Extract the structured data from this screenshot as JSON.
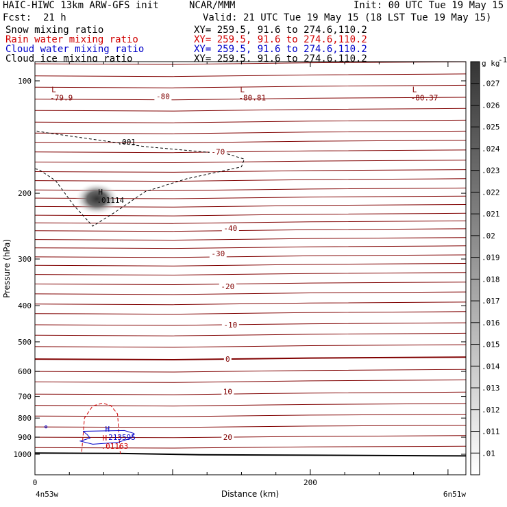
{
  "header": {
    "model": "HAIC-HIWC 13km ARW-GFS init",
    "org": "NCAR/MMM",
    "init": "Init: 00 UTC Tue 19 May 15",
    "fcst_label": "Fcst:",
    "fcst_value": "21 h",
    "valid": "Valid: 21 UTC Tue 19 May 15 (18 LST Tue 19 May 15)"
  },
  "fields": [
    {
      "name": "Snow mixing ratio",
      "xy": "XY= 259.5, 91.6 to 274.6,110.2",
      "color": "#000000"
    },
    {
      "name": "Rain water mixing ratio",
      "xy": "XY= 259.5, 91.6 to 274.6,110.2",
      "color": "#d00000"
    },
    {
      "name": "Cloud water mixing ratio",
      "xy": "XY= 259.5, 91.6 to 274.6,110.2",
      "color": "#0000c8"
    },
    {
      "name": "Cloud ice mixing ratio",
      "xy": "XY= 259.5, 91.6 to 274.6,110.2",
      "color": "#000000"
    }
  ],
  "chart_data": {
    "type": "cross-section",
    "xlabel": "Distance (km)",
    "ylabel": "Pressure (hPa)",
    "x_ticks": [
      0,
      200
    ],
    "x_end_labels": [
      "4n53w",
      "6n51w"
    ],
    "y_ticks": [
      100,
      200,
      300,
      400,
      500,
      600,
      700,
      800,
      900,
      1000
    ],
    "y_scale": "log",
    "xlim": [
      0,
      313
    ],
    "ylim": [
      1050,
      70
    ],
    "isotherm_labels": [
      {
        "label": "-80",
        "x": 93,
        "p": 110
      },
      {
        "label": "-70",
        "x": 133,
        "p": 155
      },
      {
        "label": "-40",
        "x": 142,
        "p": 248
      },
      {
        "label": "-30",
        "x": 133,
        "p": 290
      },
      {
        "label": "-20",
        "x": 140,
        "p": 355
      },
      {
        "label": "-10",
        "x": 142,
        "p": 450
      },
      {
        "label": "0",
        "x": 140,
        "p": 556
      },
      {
        "label": "10",
        "x": 140,
        "p": 680
      },
      {
        "label": "20",
        "x": 140,
        "p": 900
      }
    ],
    "extrema": [
      {
        "marker": "L",
        "value": "-79.9",
        "x": 11,
        "p": 109,
        "color": "#800000"
      },
      {
        "marker": "L",
        "value": "-80.81",
        "x": 148,
        "p": 109,
        "color": "#800000"
      },
      {
        "marker": "L",
        "value": "-80.37",
        "x": 273,
        "p": 109,
        "color": "#800000"
      },
      {
        "marker": "H",
        "value": ".01114",
        "x": 45,
        "p": 205,
        "color": "#000000"
      },
      {
        "marker": "H",
        "value": ".213595",
        "x": 50,
        "p": 885,
        "color": "#0000c8"
      },
      {
        "marker": "H",
        "value": ".01163",
        "x": 48,
        "p": 935,
        "color": "#d00000"
      }
    ],
    "contour_label": {
      "label": ".001",
      "x": 60,
      "p": 148
    },
    "colorbar": {
      "unit": "g kg",
      "unit_exp": "-1",
      "levels": [
        ".01",
        ".011",
        ".012",
        ".013",
        ".014",
        ".015",
        ".016",
        ".017",
        ".018",
        ".019",
        ".02",
        ".021",
        ".022",
        ".023",
        ".024",
        ".025",
        ".026",
        ".027"
      ]
    }
  }
}
